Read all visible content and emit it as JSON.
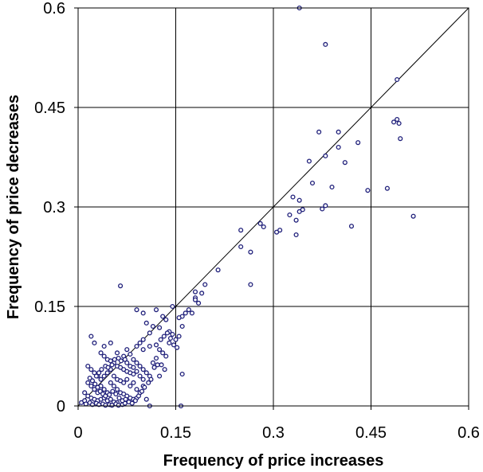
{
  "chart_data": {
    "type": "scatter",
    "title": "",
    "xlabel": "Frequency of price increases",
    "ylabel": "Frequency of price decreases",
    "xlim": [
      0,
      0.6
    ],
    "ylim": [
      0,
      0.6
    ],
    "xticks": [
      "0",
      "0.15",
      "0.3",
      "0.45",
      "0.6"
    ],
    "yticks": [
      "0",
      "0.15",
      "0.3",
      "0.45",
      "0.6"
    ],
    "grid": true,
    "legend": "none",
    "reference_line": {
      "from": [
        0,
        0
      ],
      "to": [
        0.6,
        0.6
      ]
    },
    "marker_color": "#1f1f7a",
    "series": [
      {
        "points": [
          [
            0.34,
            0.6
          ],
          [
            0.38,
            0.545
          ],
          [
            0.49,
            0.492
          ],
          [
            0.37,
            0.413
          ],
          [
            0.4,
            0.413
          ],
          [
            0.485,
            0.428
          ],
          [
            0.49,
            0.432
          ],
          [
            0.493,
            0.426
          ],
          [
            0.43,
            0.397
          ],
          [
            0.4,
            0.39
          ],
          [
            0.495,
            0.403
          ],
          [
            0.38,
            0.377
          ],
          [
            0.355,
            0.369
          ],
          [
            0.41,
            0.367
          ],
          [
            0.39,
            0.33
          ],
          [
            0.36,
            0.336
          ],
          [
            0.445,
            0.325
          ],
          [
            0.475,
            0.328
          ],
          [
            0.33,
            0.315
          ],
          [
            0.34,
            0.31
          ],
          [
            0.345,
            0.296
          ],
          [
            0.34,
            0.293
          ],
          [
            0.38,
            0.302
          ],
          [
            0.375,
            0.297
          ],
          [
            0.325,
            0.288
          ],
          [
            0.515,
            0.286
          ],
          [
            0.335,
            0.28
          ],
          [
            0.28,
            0.275
          ],
          [
            0.285,
            0.27
          ],
          [
            0.31,
            0.265
          ],
          [
            0.305,
            0.262
          ],
          [
            0.25,
            0.265
          ],
          [
            0.335,
            0.258
          ],
          [
            0.42,
            0.271
          ],
          [
            0.25,
            0.24
          ],
          [
            0.265,
            0.232
          ],
          [
            0.265,
            0.183
          ],
          [
            0.215,
            0.205
          ],
          [
            0.195,
            0.183
          ],
          [
            0.19,
            0.17
          ],
          [
            0.18,
            0.172
          ],
          [
            0.18,
            0.163
          ],
          [
            0.18,
            0.16
          ],
          [
            0.185,
            0.155
          ],
          [
            0.065,
            0.181
          ],
          [
            0.165,
            0.14
          ],
          [
            0.175,
            0.14
          ],
          [
            0.16,
            0.135
          ],
          [
            0.155,
            0.133
          ],
          [
            0.145,
            0.15
          ],
          [
            0.17,
            0.145
          ],
          [
            0.09,
            0.145
          ],
          [
            0.1,
            0.14
          ],
          [
            0.13,
            0.135
          ],
          [
            0.12,
            0.145
          ],
          [
            0.135,
            0.13
          ],
          [
            0.105,
            0.125
          ],
          [
            0.115,
            0.12
          ],
          [
            0.125,
            0.118
          ],
          [
            0.11,
            0.11
          ],
          [
            0.14,
            0.112
          ],
          [
            0.145,
            0.108
          ],
          [
            0.155,
            0.105
          ],
          [
            0.16,
            0.12
          ],
          [
            0.15,
            0.1
          ],
          [
            0.14,
            0.095
          ],
          [
            0.1,
            0.1
          ],
          [
            0.095,
            0.095
          ],
          [
            0.09,
            0.09
          ],
          [
            0.1,
            0.085
          ],
          [
            0.11,
            0.09
          ],
          [
            0.12,
            0.092
          ],
          [
            0.125,
            0.085
          ],
          [
            0.13,
            0.08
          ],
          [
            0.135,
            0.075
          ],
          [
            0.12,
            0.072
          ],
          [
            0.115,
            0.065
          ],
          [
            0.02,
            0.105
          ],
          [
            0.025,
            0.095
          ],
          [
            0.04,
            0.09
          ],
          [
            0.05,
            0.095
          ],
          [
            0.06,
            0.08
          ],
          [
            0.07,
            0.075
          ],
          [
            0.075,
            0.085
          ],
          [
            0.08,
            0.078
          ],
          [
            0.085,
            0.07
          ],
          [
            0.09,
            0.065
          ],
          [
            0.095,
            0.06
          ],
          [
            0.1,
            0.055
          ],
          [
            0.105,
            0.05
          ],
          [
            0.11,
            0.045
          ],
          [
            0.128,
            0.062
          ],
          [
            0.133,
            0.055
          ],
          [
            0.125,
            0.045
          ],
          [
            0.16,
            0.048
          ],
          [
            0.158,
            0.0
          ],
          [
            0.11,
            0.0
          ],
          [
            0.035,
            0.08
          ],
          [
            0.04,
            0.075
          ],
          [
            0.045,
            0.07
          ],
          [
            0.05,
            0.068
          ],
          [
            0.055,
            0.065
          ],
          [
            0.06,
            0.06
          ],
          [
            0.065,
            0.058
          ],
          [
            0.07,
            0.055
          ],
          [
            0.075,
            0.052
          ],
          [
            0.08,
            0.05
          ],
          [
            0.085,
            0.048
          ],
          [
            0.015,
            0.06
          ],
          [
            0.02,
            0.055
          ],
          [
            0.025,
            0.05
          ],
          [
            0.03,
            0.045
          ],
          [
            0.035,
            0.04
          ],
          [
            0.04,
            0.045
          ],
          [
            0.045,
            0.05
          ],
          [
            0.05,
            0.055
          ],
          [
            0.055,
            0.045
          ],
          [
            0.06,
            0.04
          ],
          [
            0.065,
            0.038
          ],
          [
            0.07,
            0.035
          ],
          [
            0.075,
            0.04
          ],
          [
            0.08,
            0.03
          ],
          [
            0.085,
            0.035
          ],
          [
            0.09,
            0.025
          ],
          [
            0.095,
            0.02
          ],
          [
            0.1,
            0.03
          ],
          [
            0.105,
            0.01
          ],
          [
            0.09,
            0.012
          ],
          [
            0.015,
            0.035
          ],
          [
            0.02,
            0.03
          ],
          [
            0.025,
            0.025
          ],
          [
            0.03,
            0.02
          ],
          [
            0.035,
            0.03
          ],
          [
            0.04,
            0.025
          ],
          [
            0.045,
            0.02
          ],
          [
            0.05,
            0.035
          ],
          [
            0.055,
            0.03
          ],
          [
            0.06,
            0.025
          ],
          [
            0.065,
            0.02
          ],
          [
            0.07,
            0.018
          ],
          [
            0.075,
            0.015
          ],
          [
            0.08,
            0.012
          ],
          [
            0.085,
            0.01
          ],
          [
            0.01,
            0.02
          ],
          [
            0.015,
            0.015
          ],
          [
            0.02,
            0.012
          ],
          [
            0.025,
            0.01
          ],
          [
            0.03,
            0.008
          ],
          [
            0.035,
            0.01
          ],
          [
            0.04,
            0.012
          ],
          [
            0.045,
            0.008
          ],
          [
            0.05,
            0.01
          ],
          [
            0.055,
            0.006
          ],
          [
            0.06,
            0.005
          ],
          [
            0.005,
            0.005
          ],
          [
            0.01,
            0.008
          ],
          [
            0.012,
            0.003
          ],
          [
            0.018,
            0.005
          ],
          [
            0.022,
            0.002
          ],
          [
            0.028,
            0.004
          ],
          [
            0.032,
            0.002
          ],
          [
            0.038,
            0.003
          ],
          [
            0.042,
            0.001
          ],
          [
            0.048,
            0.002
          ],
          [
            0.052,
            0.001
          ],
          [
            0.058,
            0.003
          ],
          [
            0.062,
            0.001
          ],
          [
            0.068,
            0.002
          ],
          [
            0.072,
            0.004
          ],
          [
            0.028,
            0.045
          ],
          [
            0.032,
            0.05
          ],
          [
            0.036,
            0.055
          ],
          [
            0.042,
            0.06
          ],
          [
            0.046,
            0.058
          ],
          [
            0.052,
            0.062
          ],
          [
            0.056,
            0.07
          ],
          [
            0.062,
            0.072
          ],
          [
            0.066,
            0.068
          ],
          [
            0.072,
            0.07
          ],
          [
            0.018,
            0.042
          ],
          [
            0.022,
            0.038
          ],
          [
            0.026,
            0.033
          ],
          [
            0.03,
            0.028
          ],
          [
            0.034,
            0.022
          ],
          [
            0.038,
            0.018
          ],
          [
            0.042,
            0.015
          ],
          [
            0.048,
            0.017
          ],
          [
            0.053,
            0.022
          ],
          [
            0.058,
            0.018
          ],
          [
            0.063,
            0.012
          ],
          [
            0.068,
            0.008
          ],
          [
            0.073,
            0.01
          ],
          [
            0.078,
            0.006
          ],
          [
            0.083,
            0.004
          ],
          [
            0.088,
            0.008
          ],
          [
            0.093,
            0.015
          ],
          [
            0.098,
            0.022
          ],
          [
            0.102,
            0.028
          ],
          [
            0.108,
            0.035
          ],
          [
            0.112,
            0.04
          ],
          [
            0.117,
            0.058
          ],
          [
            0.122,
            0.062
          ],
          [
            0.127,
            0.1
          ],
          [
            0.132,
            0.105
          ],
          [
            0.137,
            0.11
          ],
          [
            0.142,
            0.102
          ],
          [
            0.147,
            0.092
          ],
          [
            0.152,
            0.088
          ],
          [
            0.075,
            0.065
          ],
          [
            0.08,
            0.06
          ],
          [
            0.085,
            0.058
          ],
          [
            0.09,
            0.052
          ],
          [
            0.095,
            0.045
          ],
          [
            0.1,
            0.04
          ]
        ]
      }
    ]
  }
}
